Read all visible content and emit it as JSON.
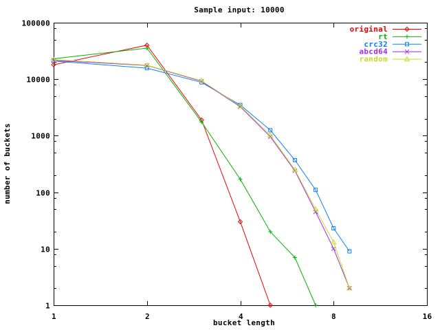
{
  "chart_data": {
    "type": "line",
    "title": "Sample input: 10000",
    "xlabel": "bucket length",
    "ylabel": "number of buckets",
    "x_scale": "log2",
    "y_scale": "log10",
    "xlim": [
      1,
      16
    ],
    "ylim": [
      1,
      100000
    ],
    "x_ticks": [
      "1",
      "2",
      "4",
      "8",
      "16"
    ],
    "x_tick_values": [
      1,
      2,
      4,
      8,
      16
    ],
    "y_ticks": [
      "100000",
      "10000",
      "1000",
      "100",
      "10",
      "1"
    ],
    "y_tick_values": [
      100000,
      10000,
      1000,
      100,
      10,
      1
    ],
    "y_minor_multipliers": [
      2,
      5,
      8
    ],
    "grid": false,
    "legend_position": "top-right-inside",
    "background_color": "#ffffff",
    "axis_color": "#000000",
    "series": [
      {
        "name": "original",
        "color": "#ee0000",
        "marker": "diamond",
        "points": [
          [
            1,
            18000
          ],
          [
            2,
            40000
          ],
          [
            3,
            1900
          ],
          [
            4,
            30
          ],
          [
            5,
            1
          ]
        ]
      },
      {
        "name": "rt",
        "color": "#00b400",
        "marker": "plus",
        "points": [
          [
            1,
            23000
          ],
          [
            2,
            35500
          ],
          [
            3,
            1750
          ],
          [
            4,
            170
          ],
          [
            5,
            20
          ],
          [
            6,
            7
          ],
          [
            7,
            1
          ]
        ]
      },
      {
        "name": "crc32",
        "color": "#0b80f0",
        "marker": "square",
        "points": [
          [
            1,
            21000
          ],
          [
            2,
            15700
          ],
          [
            3,
            8800
          ],
          [
            4,
            3500
          ],
          [
            5,
            1250
          ],
          [
            6,
            370
          ],
          [
            7,
            110
          ],
          [
            8,
            23
          ],
          [
            9,
            9
          ]
        ]
      },
      {
        "name": "abcd64",
        "color": "#a428f0",
        "marker": "cross",
        "points": [
          [
            1,
            21500
          ],
          [
            2,
            17500
          ],
          [
            3,
            9200
          ],
          [
            4,
            3250
          ],
          [
            5,
            960
          ],
          [
            6,
            240
          ],
          [
            7,
            45
          ],
          [
            8,
            10
          ],
          [
            9,
            2
          ]
        ]
      },
      {
        "name": "random",
        "color": "#c4dc28",
        "marker": "triangle",
        "points": [
          [
            1,
            22300
          ],
          [
            2,
            17700
          ],
          [
            3,
            9400
          ],
          [
            4,
            3350
          ],
          [
            5,
            1020
          ],
          [
            6,
            250
          ],
          [
            7,
            50
          ],
          [
            8,
            13
          ],
          [
            9,
            2
          ]
        ]
      }
    ]
  }
}
